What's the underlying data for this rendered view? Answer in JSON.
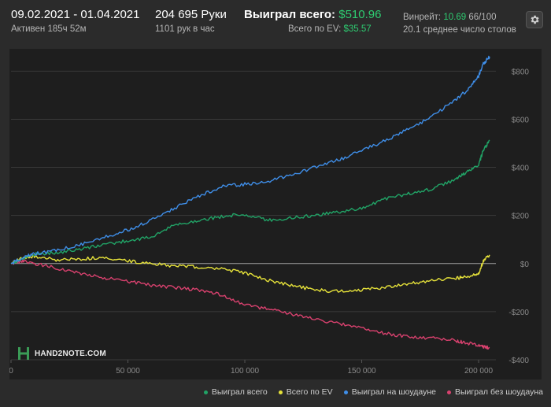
{
  "header": {
    "date_range": "09.02.2021 - 01.04.2021",
    "active_time": "Активен 185ч 52м",
    "hands": "204 695 Руки",
    "hands_per_hour": "1101 рук в час",
    "won_total_label": "Выиграл всего:",
    "won_total_value": "$510.96",
    "ev_total_label": "Всего по EV:",
    "ev_total_value": "$35.57",
    "winrate_label": "Винрейт:",
    "winrate_value": "10.69",
    "winrate_unit": "66/100",
    "avg_tables": "20.1 среднее число столов"
  },
  "logo": {
    "text": "HAND2NOTE.COM"
  },
  "colors": {
    "won_total": "#21a366",
    "ev_total": "#e6e23a",
    "won_showdown": "#3f8ee8",
    "won_non_showdown": "#d8416e",
    "zero_line": "#a0a0a0",
    "grid": "#3a3a3a",
    "background": "#1e1e1e"
  },
  "legend": [
    {
      "label": "Выиграл всего",
      "color": "#21a366"
    },
    {
      "label": "Всего по EV",
      "color": "#e6e23a"
    },
    {
      "label": "Выиграл на шоудауне",
      "color": "#3f8ee8"
    },
    {
      "label": "Выиграл без шоудауна",
      "color": "#d8416e"
    }
  ],
  "chart_data": {
    "type": "line",
    "x_ticks": [
      0,
      50000,
      100000,
      150000,
      200000
    ],
    "x_tick_labels": [
      "0",
      "50 000",
      "100 000",
      "150 000",
      "200 000"
    ],
    "y_ticks": [
      800,
      600,
      400,
      200,
      0,
      -200,
      -400
    ],
    "y_tick_labels": [
      "$800",
      "$600",
      "$400",
      "$200",
      "$0",
      "-$200",
      "-$400"
    ],
    "xlim": [
      0,
      204695
    ],
    "ylim": [
      -400,
      860
    ],
    "series": [
      {
        "name": "Выиграл всего",
        "x": [
          0,
          5000,
          10000,
          20000,
          30000,
          40000,
          50000,
          60000,
          70000,
          80000,
          90000,
          100000,
          110000,
          120000,
          130000,
          140000,
          150000,
          160000,
          170000,
          180000,
          190000,
          195000,
          200000,
          202000,
          204695
        ],
        "y": [
          0,
          20,
          40,
          45,
          60,
          80,
          95,
          110,
          160,
          180,
          195,
          205,
          180,
          190,
          200,
          215,
          230,
          270,
          290,
          310,
          350,
          380,
          410,
          470,
          510
        ]
      },
      {
        "name": "Всего по EV",
        "x": [
          0,
          5000,
          10000,
          20000,
          30000,
          40000,
          50000,
          60000,
          70000,
          80000,
          90000,
          100000,
          110000,
          120000,
          130000,
          140000,
          150000,
          160000,
          170000,
          180000,
          190000,
          195000,
          200000,
          202000,
          204695
        ],
        "y": [
          0,
          25,
          30,
          15,
          20,
          25,
          10,
          0,
          -10,
          -15,
          -20,
          -40,
          -70,
          -90,
          -110,
          -115,
          -110,
          -100,
          -85,
          -70,
          -60,
          -55,
          -40,
          10,
          36
        ]
      },
      {
        "name": "Выиграл на шоудауне",
        "x": [
          0,
          5000,
          10000,
          20000,
          30000,
          40000,
          50000,
          60000,
          70000,
          80000,
          90000,
          100000,
          110000,
          120000,
          130000,
          140000,
          150000,
          160000,
          170000,
          180000,
          190000,
          195000,
          200000,
          202000,
          204695
        ],
        "y": [
          0,
          25,
          40,
          55,
          80,
          110,
          140,
          180,
          230,
          280,
          320,
          330,
          340,
          370,
          400,
          430,
          470,
          510,
          560,
          610,
          680,
          720,
          780,
          830,
          860
        ]
      },
      {
        "name": "Выиграл без шоудауна",
        "x": [
          0,
          5000,
          10000,
          20000,
          30000,
          40000,
          50000,
          60000,
          70000,
          80000,
          90000,
          100000,
          110000,
          120000,
          130000,
          140000,
          150000,
          160000,
          170000,
          180000,
          190000,
          195000,
          200000,
          202000,
          204695
        ],
        "y": [
          0,
          10,
          0,
          -20,
          -40,
          -60,
          -75,
          -90,
          -100,
          -110,
          -130,
          -170,
          -190,
          -210,
          -230,
          -250,
          -270,
          -290,
          -305,
          -310,
          -320,
          -330,
          -340,
          -345,
          -350
        ]
      }
    ]
  }
}
